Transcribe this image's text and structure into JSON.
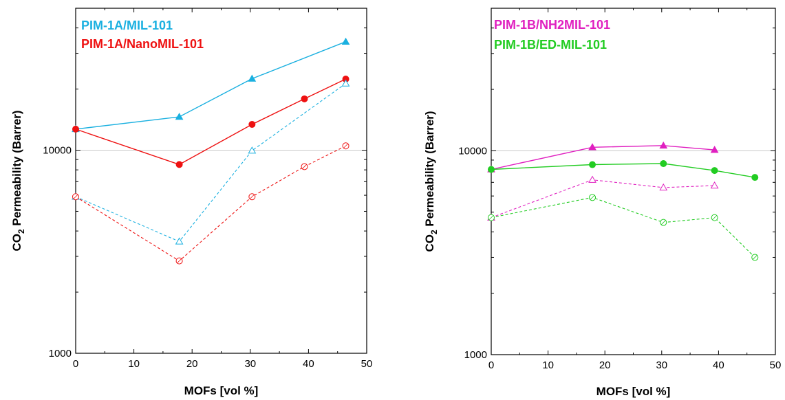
{
  "chart_data": [
    {
      "type": "line",
      "y_scale": "log",
      "xlabel": "MOFs [vol %]",
      "ylabel_main": "CO",
      "ylabel_sub": "2",
      "ylabel_rest": " Permeability (Barrer)",
      "xlim": [
        0,
        50
      ],
      "ylim": [
        1000,
        50000
      ],
      "x_ticks": [
        "0",
        "10",
        "20",
        "30",
        "40",
        "50"
      ],
      "y_ticks": [
        "1000",
        "10000"
      ],
      "reference_line_y": 10000,
      "legend": [
        {
          "label": "PIM-1A/MIL-101",
          "color": "#1ab0e0"
        },
        {
          "label": "PIM-1A/NanoMIL-101",
          "color": "#ee1111"
        }
      ],
      "series": [
        {
          "color": "#1ab0e0",
          "marker": "triangle",
          "filled": true,
          "dashed": false,
          "x": [
            0,
            17.8,
            30.3,
            46.4
          ],
          "y": [
            12700,
            14600,
            22500,
            34200
          ]
        },
        {
          "color": "#ee1111",
          "marker": "circle",
          "filled": true,
          "dashed": false,
          "x": [
            0,
            17.8,
            30.3,
            39.3,
            46.4
          ],
          "y": [
            12700,
            8500,
            13400,
            17900,
            22400
          ]
        },
        {
          "color": "#1ab0e0",
          "marker": "triangle",
          "filled": false,
          "dashed": true,
          "x": [
            0,
            17.8,
            30.3,
            46.4
          ],
          "y": [
            5900,
            3550,
            9950,
            21300
          ]
        },
        {
          "color": "#ee1111",
          "marker": "circle",
          "filled": false,
          "dashed": true,
          "x": [
            0,
            17.8,
            30.3,
            39.3,
            46.4
          ],
          "y": [
            5900,
            2850,
            5900,
            8300,
            10500
          ]
        }
      ]
    },
    {
      "type": "line",
      "y_scale": "log",
      "xlabel": "MOFs [vol %]",
      "ylabel_main": "CO",
      "ylabel_sub": "2",
      "ylabel_rest": " Permeability (Barrer)",
      "xlim": [
        0,
        50
      ],
      "ylim": [
        1000,
        50000
      ],
      "x_ticks": [
        "0",
        "10",
        "20",
        "30",
        "40",
        "50"
      ],
      "y_ticks": [
        "1000",
        "10000"
      ],
      "reference_line_y": 10000,
      "legend": [
        {
          "label": "PIM-1B/NH2MIL-101",
          "color": "#e020c0"
        },
        {
          "label": "PIM-1B/ED-MIL-101",
          "color": "#22cc22"
        }
      ],
      "series": [
        {
          "color": "#e020c0",
          "marker": "triangle",
          "filled": true,
          "dashed": false,
          "x": [
            0,
            17.8,
            30.3,
            39.3
          ],
          "y": [
            8100,
            10400,
            10600,
            10100
          ]
        },
        {
          "color": "#22cc22",
          "marker": "circle",
          "filled": true,
          "dashed": false,
          "x": [
            0,
            17.8,
            30.3,
            39.3,
            46.4
          ],
          "y": [
            8100,
            8550,
            8650,
            8000,
            7400
          ]
        },
        {
          "color": "#e020c0",
          "marker": "triangle",
          "filled": false,
          "dashed": true,
          "x": [
            0,
            17.8,
            30.3,
            39.3
          ],
          "y": [
            4700,
            7200,
            6600,
            6750
          ]
        },
        {
          "color": "#22cc22",
          "marker": "circle",
          "filled": false,
          "dashed": true,
          "x": [
            0,
            17.8,
            30.3,
            39.3,
            46.4
          ],
          "y": [
            4700,
            5900,
            4450,
            4700,
            3000
          ]
        }
      ]
    }
  ]
}
